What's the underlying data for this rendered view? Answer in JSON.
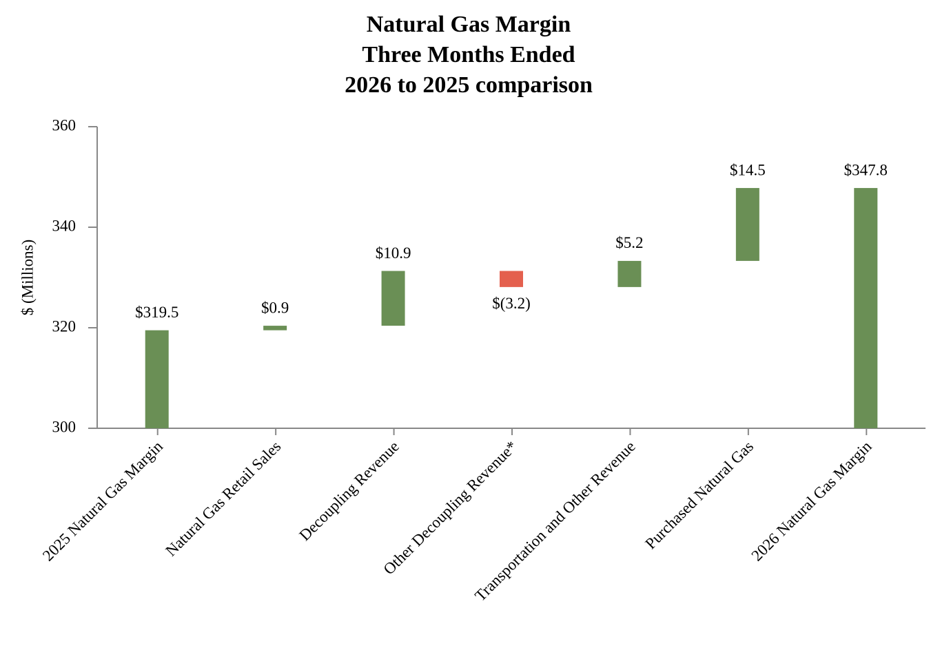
{
  "chart_data": {
    "type": "waterfall",
    "title": [
      "Natural Gas Margin",
      "Three Months Ended",
      "2026 to 2025 comparison"
    ],
    "y_label": "$ (Millions)",
    "categories": [
      "2025 Natural Gas Margin",
      "Natural Gas Retail Sales",
      "Decoupling Revenue",
      "Other Decoupling Revenue*",
      "Transportation and Other Revenue",
      "Purchased Natural Gas",
      "2026 Natural Gas Margin"
    ],
    "values": [
      319.5,
      0.9,
      10.9,
      -3.2,
      5.2,
      14.5,
      347.8
    ],
    "value_labels": [
      "$319.5",
      "$0.9",
      "$10.9",
      "$(3.2)",
      "$5.2",
      "$14.5",
      "$347.8"
    ],
    "is_total": [
      true,
      false,
      false,
      false,
      false,
      false,
      true
    ],
    "increase_color": "#6a8f55",
    "decrease_color": "#e4604e",
    "total_color": "#6a8f55",
    "ylim": [
      300,
      360
    ],
    "yticks": [
      300,
      320,
      340,
      360
    ],
    "grid": false
  }
}
